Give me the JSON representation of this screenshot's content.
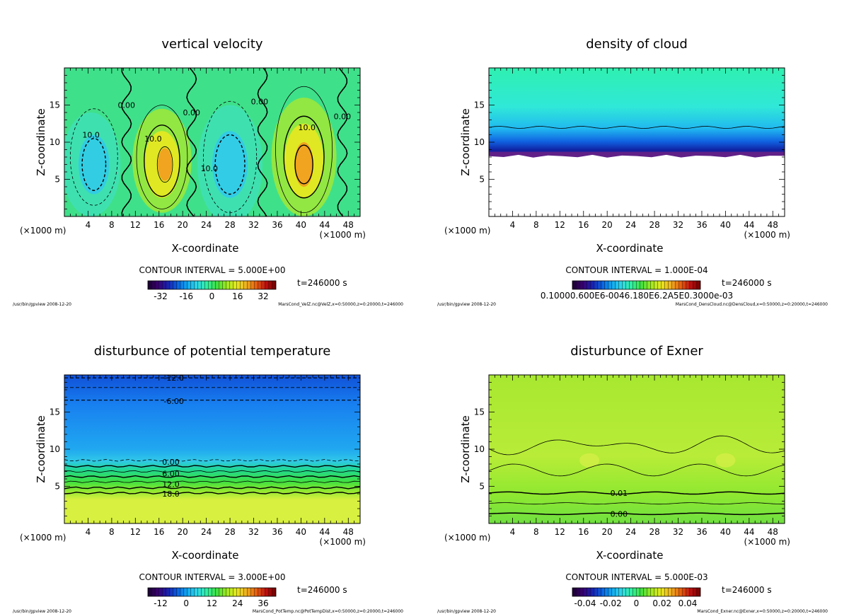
{
  "footer_program": "/usr/bin/gpview",
  "footer_date": "2008-12-20",
  "chart_data": [
    {
      "type": "heatmap",
      "kind": "velz",
      "title": "vertical velocity",
      "xlabel": "X-coordinate",
      "ylabel": "Z-coordinate",
      "x_unit_left": "(×1000 m)",
      "x_unit_right": "(×1000 m)",
      "xlim": [
        0,
        50
      ],
      "ylim": [
        0,
        20
      ],
      "x_ticks": [
        "4",
        "8",
        "12",
        "16",
        "20",
        "24",
        "28",
        "32",
        "36",
        "40",
        "44",
        "48"
      ],
      "y_ticks": [
        "5",
        "10",
        "15"
      ],
      "contour_interval": "CONTOUR INTERVAL = 5.000E+00",
      "time": "t=246000 s",
      "colorbar_ticks": [
        "-32",
        "-16",
        "0",
        "16",
        "32"
      ],
      "contour_labels": [
        {
          "text": "0.00",
          "x": 10.5,
          "y": 15
        },
        {
          "text": "10.0",
          "x": 4.5,
          "y": 11
        },
        {
          "text": "10.0",
          "x": 15.0,
          "y": 10.5
        },
        {
          "text": "0.00",
          "x": 21.5,
          "y": 14
        },
        {
          "text": "10.0",
          "x": 24.5,
          "y": 6.5
        },
        {
          "text": "0.00",
          "x": 33.0,
          "y": 15.5
        },
        {
          "text": "10.0",
          "x": 41.0,
          "y": 12
        },
        {
          "text": "0.00",
          "x": 47.0,
          "y": 13.5
        }
      ],
      "footer_file": "MarsCond_VelZ.nc@VelZ,x=0:50000,z=0:20000,t=246000",
      "colors": {
        "base": "#3fe08a",
        "updraft": "#f0a020",
        "downdraft": "#30c8f0"
      }
    },
    {
      "type": "heatmap",
      "kind": "cloud",
      "title": "density of cloud",
      "xlabel": "X-coordinate",
      "ylabel": "Z-coordinate",
      "x_unit_left": "(×1000 m)",
      "x_unit_right": "(×1000 m)",
      "xlim": [
        0,
        50
      ],
      "ylim": [
        0,
        20
      ],
      "x_ticks": [
        "4",
        "8",
        "12",
        "16",
        "20",
        "24",
        "28",
        "32",
        "36",
        "40",
        "44",
        "48"
      ],
      "y_ticks": [
        "5",
        "10",
        "15"
      ],
      "contour_interval": "CONTOUR INTERVAL = 1.000E-04",
      "time": "t=246000 s",
      "colorbar_ticks": [
        "0.10000.600E6-0046.180E6.2A5E0.3000e-03"
      ],
      "contour_labels": [],
      "footer_file": "MarsCond_DensCloud.nc@DensCloud,x=0:50000,z=0:20000,t=246000",
      "cloud_base_z": 8.3,
      "cloud_line_z": 12.0
    },
    {
      "type": "heatmap",
      "kind": "pottemp",
      "title": "disturbunce of potential temperature",
      "xlabel": "X-coordinate",
      "ylabel": "Z-coordinate",
      "x_unit_left": "(×1000 m)",
      "x_unit_right": "(×1000 m)",
      "xlim": [
        0,
        50
      ],
      "ylim": [
        0,
        20
      ],
      "x_ticks": [
        "4",
        "8",
        "12",
        "16",
        "20",
        "24",
        "28",
        "32",
        "36",
        "40",
        "44",
        "48"
      ],
      "y_ticks": [
        "5",
        "10",
        "15"
      ],
      "contour_interval": "CONTOUR INTERVAL = 3.000E+00",
      "time": "t=246000 s",
      "colorbar_ticks": [
        "-12",
        "0",
        "12",
        "24",
        "36"
      ],
      "contour_labels": [
        {
          "text": "-12.0",
          "x": 18.5,
          "y": 19.6
        },
        {
          "text": "-6.00",
          "x": 18.5,
          "y": 16.5
        },
        {
          "text": "0.00",
          "x": 18.0,
          "y": 8.3
        },
        {
          "text": "6.00",
          "x": 18.0,
          "y": 6.7
        },
        {
          "text": "12.0",
          "x": 18.0,
          "y": 5.3
        },
        {
          "text": "18.0",
          "x": 18.0,
          "y": 4.0
        }
      ],
      "footer_file": "MarsCond_PotTemp.nc@PotTempDist,x=0:50000,z=0:20000,t=246000"
    },
    {
      "type": "heatmap",
      "kind": "exner",
      "title": "disturbunce of Exner",
      "xlabel": "X-coordinate",
      "ylabel": "Z-coordinate",
      "x_unit_left": "(×1000 m)",
      "x_unit_right": "(×1000 m)",
      "xlim": [
        0,
        50
      ],
      "ylim": [
        0,
        20
      ],
      "x_ticks": [
        "4",
        "8",
        "12",
        "16",
        "20",
        "24",
        "28",
        "32",
        "36",
        "40",
        "44",
        "48"
      ],
      "y_ticks": [
        "5",
        "10",
        "15"
      ],
      "contour_interval": "CONTOUR INTERVAL = 5.000E-03",
      "time": "t=246000 s",
      "colorbar_ticks": [
        "-0.04",
        "-0.02",
        "0",
        "0.02",
        "0.04"
      ],
      "contour_labels": [
        {
          "text": "0.01",
          "x": 22.0,
          "y": 4.1
        },
        {
          "text": "0.00",
          "x": 22.0,
          "y": 1.3
        }
      ],
      "footer_file": "MarsCond_Exner.nc@Exner,x=0:50000,z=0:20000,t=246000"
    }
  ]
}
